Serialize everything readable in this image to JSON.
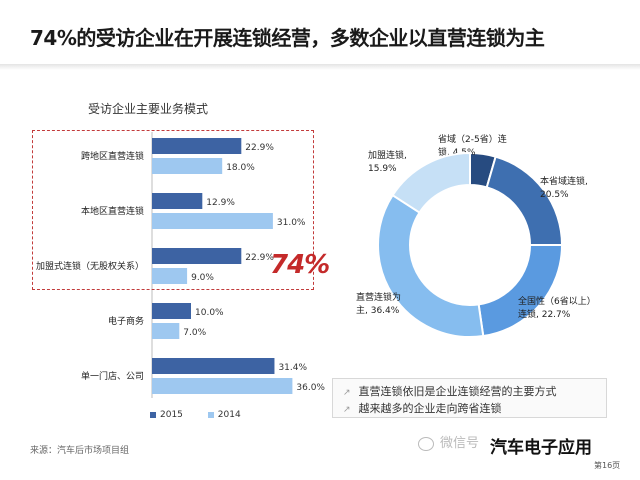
{
  "header": {
    "title": "74%的受访企业在开展连锁经营，多数企业以直营连锁为主"
  },
  "chart_data": [
    {
      "type": "bar",
      "orientation": "horizontal",
      "title": "受访企业主要业务模式",
      "categories": [
        "跨地区直营连锁",
        "本地区直营连锁",
        "加盟式连锁（无股权关系）",
        "电子商务",
        "单一门店、公司"
      ],
      "series": [
        {
          "name": "2015",
          "values": [
            22.9,
            12.9,
            22.9,
            10.0,
            31.4
          ],
          "labels": [
            "22.9%",
            "12.9%",
            "22.9%",
            "10.0%",
            "31.4%"
          ],
          "color": "#3d63a3"
        },
        {
          "name": "2014",
          "values": [
            18.0,
            31.0,
            9.0,
            7.0,
            36.0
          ],
          "labels": [
            "18.0%",
            "31.0%",
            "9.0%",
            "7.0%",
            "36.0%"
          ],
          "color": "#9ec8f0"
        }
      ],
      "xlim": [
        0,
        40
      ],
      "grid": false,
      "legend": "bottom",
      "annotation": "74%"
    },
    {
      "type": "pie",
      "style": "donut",
      "slices": [
        {
          "label": "省域（2-5省）连锁",
          "value": 4.5,
          "display": [
            "省域（2-5省）连",
            "锁, 4.5%"
          ],
          "color": "#274b80"
        },
        {
          "label": "本省域连锁",
          "value": 20.5,
          "display": [
            "本省域连锁,",
            "20.5%"
          ],
          "color": "#3e6fb0"
        },
        {
          "label": "全国性（6省以上）连锁",
          "value": 22.7,
          "display": [
            "全国性（6省以上）",
            "连锁, 22.7%"
          ],
          "color": "#5a9ae0"
        },
        {
          "label": "直营连锁为主",
          "value": 36.4,
          "display": [
            "直营连锁为",
            "主, 36.4%"
          ],
          "color": "#86bdef"
        },
        {
          "label": "加盟连锁",
          "value": 15.9,
          "display": [
            "加盟连锁,",
            "15.9%"
          ],
          "color": "#c6e0f6"
        }
      ]
    }
  ],
  "notes": [
    "直营连锁依旧是企业连锁经营的主要方式",
    "越来越多的企业走向跨省连锁"
  ],
  "footer": {
    "source": "来源：汽车后市场项目组",
    "watermark": "微信号",
    "brand": "汽车电子应用",
    "page": "第16页"
  }
}
